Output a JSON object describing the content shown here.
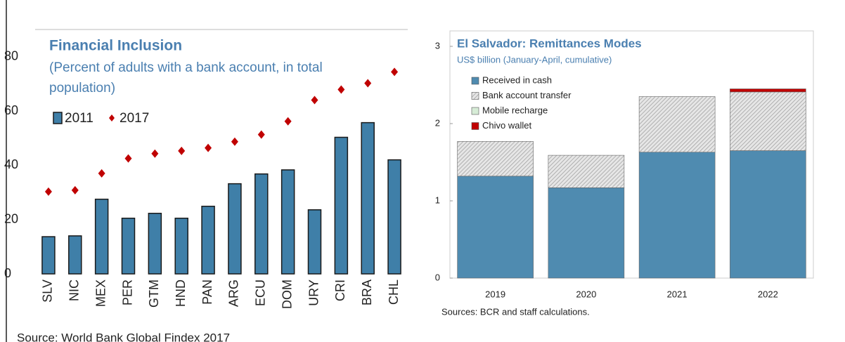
{
  "chart_data": [
    {
      "type": "bar_scatter",
      "title": "Financial Inclusion",
      "subtitle": [
        "(Percent of adults with a bank account, in total",
        "population)"
      ],
      "source": "Source: World Bank Global Findex 2017",
      "categories": [
        "SLV",
        "NIC",
        "MEX",
        "PER",
        "GTM",
        "HND",
        "PAN",
        "ARG",
        "ECU",
        "DOM",
        "URY",
        "CRI",
        "BRA",
        "CHL"
      ],
      "series": [
        {
          "name": "2011",
          "color": "#3f7fa8",
          "kind": "bar",
          "values": [
            13.7,
            14,
            27.5,
            20.5,
            22.3,
            20.5,
            24.9,
            33.2,
            36.8,
            38.3,
            23.6,
            50.3,
            55.7,
            42
          ]
        },
        {
          "name": "2017",
          "color": "#c00000",
          "kind": "diamond",
          "values": [
            30.3,
            30.8,
            37,
            42.5,
            44.3,
            45.3,
            46.4,
            48.7,
            51.3,
            56.2,
            64,
            67.9,
            70.2,
            74.4
          ]
        }
      ],
      "ylim": [
        0,
        90
      ],
      "yticks": [
        0,
        20,
        40,
        60,
        80
      ]
    },
    {
      "type": "stacked_bar",
      "title": "El Salvador: Remittances Modes",
      "subtitle": "US$ billion (January-April, cumulative)",
      "source": "Sources: BCR and staff calculations.",
      "categories": [
        "2019",
        "2020",
        "2021",
        "2022"
      ],
      "series": [
        {
          "name": "Received in cash",
          "color": "#4f8bb0",
          "values": [
            1.32,
            1.17,
            1.63,
            1.65
          ]
        },
        {
          "name": "Bank account transfer",
          "color": "#d9d9d9",
          "pattern": "hatch",
          "values": [
            0.45,
            0.42,
            0.72,
            0.76
          ]
        },
        {
          "name": "Mobile recharge",
          "color": "#d6ecd6",
          "values": [
            0,
            0,
            0,
            0
          ]
        },
        {
          "name": "Chivo wallet",
          "color": "#c00000",
          "values": [
            0,
            0,
            0,
            0.04
          ]
        }
      ],
      "ylim": [
        0,
        3.2
      ],
      "yticks": [
        0,
        1,
        2,
        3
      ]
    }
  ]
}
